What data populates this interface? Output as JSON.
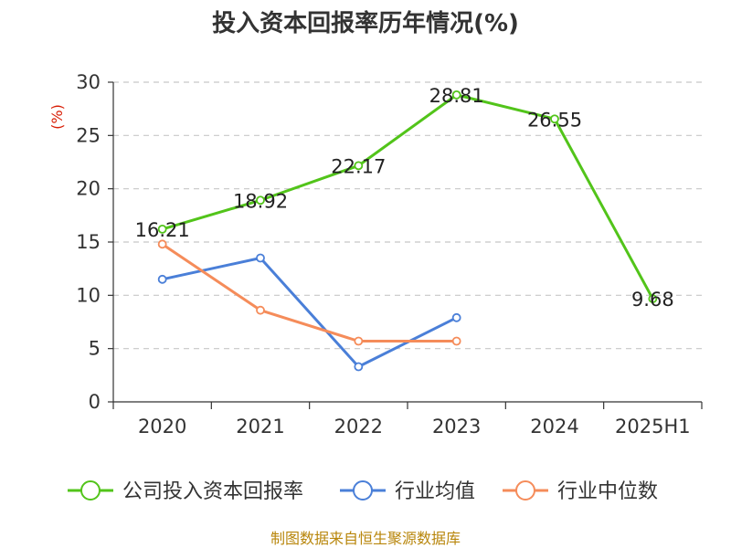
{
  "chart_data": {
    "type": "line",
    "title": "投入资本回报率历年情况(%)",
    "ylabel": "(%)",
    "categories": [
      "2020",
      "2021",
      "2022",
      "2023",
      "2024",
      "2025H1"
    ],
    "ylim": [
      0,
      30
    ],
    "yticks": [
      0,
      5,
      10,
      15,
      20,
      25,
      30
    ],
    "grid": true,
    "legend_position": "bottom",
    "series": [
      {
        "name": "公司投入资本回报率",
        "color": "#52c41a",
        "values": [
          16.21,
          18.92,
          22.17,
          28.81,
          26.55,
          9.68
        ],
        "labels": [
          "16.21",
          "18.92",
          "22.17",
          "28.81",
          "26.55",
          "9.68"
        ]
      },
      {
        "name": "行业均值",
        "color": "#4a7fd8",
        "values": [
          11.5,
          13.5,
          3.3,
          7.9,
          null,
          null
        ]
      },
      {
        "name": "行业中位数",
        "color": "#f58c5a",
        "values": [
          14.8,
          8.6,
          5.7,
          5.7,
          null,
          null
        ]
      }
    ]
  },
  "source": "制图数据来自恒生聚源数据库"
}
